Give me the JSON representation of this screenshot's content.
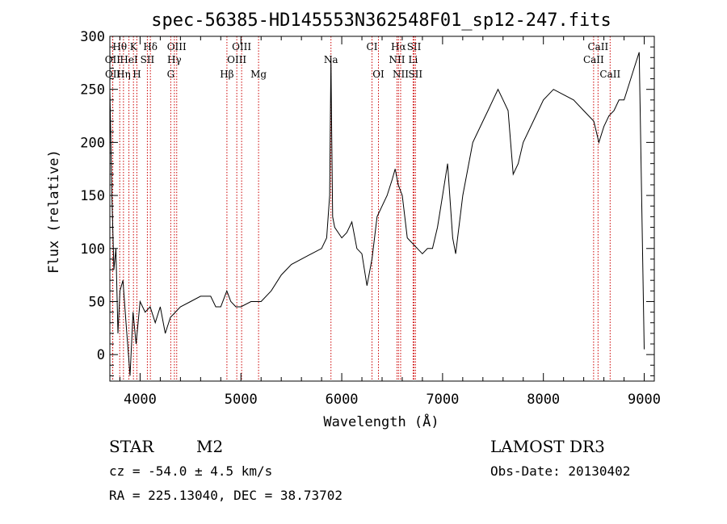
{
  "chart_data": {
    "type": "line",
    "title": "spec-56385-HD145553N362548F01_sp12-247.fits",
    "xlabel": "Wavelength (Å)",
    "ylabel": "Flux (relative)",
    "xlim": [
      3700,
      9100
    ],
    "ylim": [
      -25,
      300
    ],
    "xticks": [
      4000,
      5000,
      6000,
      7000,
      8000,
      9000
    ],
    "yticks": [
      0,
      50,
      100,
      150,
      200,
      250,
      300
    ],
    "series": [
      {
        "name": "spectrum",
        "x": [
          3700,
          3720,
          3740,
          3760,
          3780,
          3800,
          3830,
          3860,
          3900,
          3930,
          3960,
          4000,
          4050,
          4100,
          4150,
          4200,
          4250,
          4300,
          4350,
          4400,
          4500,
          4600,
          4700,
          4750,
          4800,
          4860,
          4900,
          4950,
          5000,
          5100,
          5200,
          5300,
          5400,
          5500,
          5600,
          5700,
          5800,
          5850,
          5880,
          5893,
          5900,
          5910,
          5930,
          6000,
          6050,
          6100,
          6150,
          6200,
          6250,
          6300,
          6350,
          6400,
          6450,
          6500,
          6530,
          6560,
          6600,
          6650,
          6700,
          6750,
          6800,
          6850,
          6900,
          6950,
          7000,
          7050,
          7100,
          7130,
          7200,
          7300,
          7400,
          7450,
          7500,
          7550,
          7600,
          7650,
          7700,
          7750,
          7800,
          7900,
          8000,
          8100,
          8200,
          8300,
          8400,
          8500,
          8550,
          8600,
          8650,
          8700,
          8750,
          8800,
          8850,
          8900,
          8950,
          9000
        ],
        "y": [
          250,
          150,
          80,
          100,
          20,
          60,
          70,
          30,
          -20,
          40,
          10,
          50,
          40,
          45,
          30,
          45,
          20,
          35,
          40,
          45,
          50,
          55,
          55,
          45,
          45,
          60,
          50,
          45,
          45,
          50,
          50,
          60,
          75,
          85,
          90,
          95,
          100,
          110,
          150,
          280,
          210,
          130,
          120,
          110,
          115,
          125,
          100,
          95,
          65,
          90,
          130,
          140,
          150,
          165,
          175,
          160,
          150,
          110,
          105,
          100,
          95,
          100,
          100,
          120,
          150,
          180,
          110,
          95,
          150,
          200,
          220,
          230,
          240,
          250,
          240,
          230,
          170,
          180,
          200,
          220,
          240,
          250,
          245,
          240,
          230,
          220,
          200,
          215,
          225,
          230,
          240,
          240,
          255,
          270,
          285,
          5
        ]
      }
    ],
    "line_ids": [
      {
        "label": "Hθ",
        "wl": 3798,
        "row": 1
      },
      {
        "label": "K",
        "wl": 3934,
        "row": 1
      },
      {
        "label": "Hδ",
        "wl": 4102,
        "row": 1
      },
      {
        "label": "OIII",
        "wl": 4363,
        "row": 1
      },
      {
        "label": "OIII",
        "wl": 5007,
        "row": 1
      },
      {
        "label": "CI",
        "wl": 6300,
        "row": 1
      },
      {
        "label": "Hα",
        "wl": 6563,
        "row": 1
      },
      {
        "label": "SII",
        "wl": 6717,
        "row": 1
      },
      {
        "label": "CaII",
        "wl": 8542,
        "row": 1
      },
      {
        "label": "OII",
        "wl": 3727,
        "row": 2
      },
      {
        "label": "HeI",
        "wl": 3889,
        "row": 2
      },
      {
        "label": "SII",
        "wl": 4072,
        "row": 2
      },
      {
        "label": "Hγ",
        "wl": 4340,
        "row": 2
      },
      {
        "label": "OIII",
        "wl": 4959,
        "row": 2
      },
      {
        "label": "NII",
        "wl": 6548,
        "row": 2
      },
      {
        "label": "Li",
        "wl": 6708,
        "row": 2
      },
      {
        "label": "CaII",
        "wl": 8498,
        "row": 2
      },
      {
        "label": "OII",
        "wl": 3729,
        "row": 3
      },
      {
        "label": "Hη",
        "wl": 3835,
        "row": 3
      },
      {
        "label": "H",
        "wl": 3968,
        "row": 3
      },
      {
        "label": "G",
        "wl": 4304,
        "row": 3
      },
      {
        "label": "Hβ",
        "wl": 4861,
        "row": 3
      },
      {
        "label": "Mg",
        "wl": 5175,
        "row": 3
      },
      {
        "label": "Na",
        "wl": 5893,
        "row": 2
      },
      {
        "label": "OI",
        "wl": 6364,
        "row": 3
      },
      {
        "label": "NII",
        "wl": 6584,
        "row": 3
      },
      {
        "label": "SII",
        "wl": 6731,
        "row": 3
      },
      {
        "label": "CaII",
        "wl": 8662,
        "row": 3
      }
    ]
  },
  "info": {
    "class": "STAR",
    "subclass": "M2",
    "survey": "LAMOST DR3",
    "cz": "cz = -54.0 ± 4.5 km/s",
    "obs_date": "Obs-Date: 20130402",
    "coords": "RA = 225.13040, DEC =  38.73702"
  }
}
